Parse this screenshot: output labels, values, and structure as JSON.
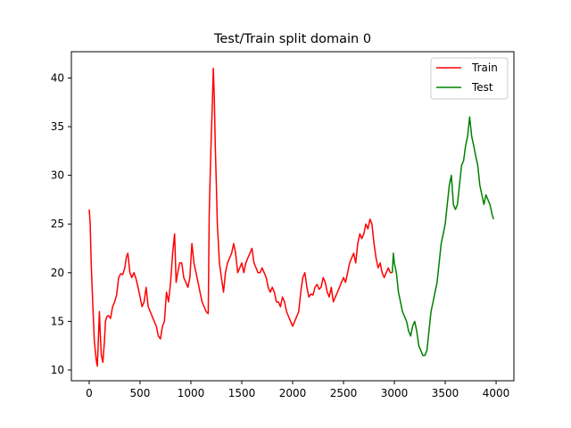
{
  "chart_data": {
    "type": "line",
    "title": "Test/Train split domain 0",
    "xlabel": "",
    "ylabel": "",
    "xlim": [
      -175,
      4175
    ],
    "ylim": [
      8.9,
      42.7
    ],
    "xticks": [
      0,
      500,
      1000,
      1500,
      2000,
      2500,
      3000,
      3500,
      4000
    ],
    "yticks": [
      10,
      15,
      20,
      25,
      30,
      35,
      40
    ],
    "grid": false,
    "legend": "top-right",
    "series": [
      {
        "name": "Train",
        "color": "#ff0000",
        "points": [
          [
            0,
            26.5
          ],
          [
            10,
            25
          ],
          [
            20,
            21
          ],
          [
            35,
            17
          ],
          [
            50,
            13
          ],
          [
            60,
            12
          ],
          [
            70,
            11
          ],
          [
            80,
            10.4
          ],
          [
            90,
            13
          ],
          [
            100,
            16
          ],
          [
            110,
            13.5
          ],
          [
            120,
            11.5
          ],
          [
            135,
            10.8
          ],
          [
            150,
            13
          ],
          [
            160,
            15
          ],
          [
            175,
            15.5
          ],
          [
            190,
            15.6
          ],
          [
            210,
            15.3
          ],
          [
            230,
            16.5
          ],
          [
            250,
            17
          ],
          [
            270,
            17.7
          ],
          [
            290,
            19.5
          ],
          [
            310,
            19.9
          ],
          [
            330,
            19.8
          ],
          [
            350,
            20.5
          ],
          [
            365,
            21.6
          ],
          [
            380,
            22
          ],
          [
            400,
            20
          ],
          [
            420,
            19.5
          ],
          [
            440,
            20
          ],
          [
            460,
            19.4
          ],
          [
            480,
            18.5
          ],
          [
            500,
            17.5
          ],
          [
            520,
            16.5
          ],
          [
            540,
            17
          ],
          [
            560,
            18.5
          ],
          [
            580,
            16.5
          ],
          [
            600,
            16
          ],
          [
            620,
            15.5
          ],
          [
            640,
            15
          ],
          [
            660,
            14.5
          ],
          [
            680,
            13.5
          ],
          [
            700,
            13.2
          ],
          [
            720,
            14.5
          ],
          [
            740,
            15
          ],
          [
            760,
            18
          ],
          [
            780,
            17
          ],
          [
            800,
            19
          ],
          [
            820,
            22
          ],
          [
            840,
            24
          ],
          [
            855,
            19
          ],
          [
            870,
            20
          ],
          [
            890,
            21
          ],
          [
            910,
            21
          ],
          [
            930,
            19.5
          ],
          [
            950,
            19
          ],
          [
            970,
            18.5
          ],
          [
            990,
            19.5
          ],
          [
            1010,
            23
          ],
          [
            1030,
            21
          ],
          [
            1050,
            20
          ],
          [
            1070,
            19
          ],
          [
            1090,
            18
          ],
          [
            1110,
            17
          ],
          [
            1130,
            16.5
          ],
          [
            1150,
            16
          ],
          [
            1170,
            15.8
          ],
          [
            1180,
            26
          ],
          [
            1190,
            30
          ],
          [
            1200,
            34
          ],
          [
            1210,
            37
          ],
          [
            1220,
            41
          ],
          [
            1230,
            38
          ],
          [
            1240,
            33
          ],
          [
            1250,
            29
          ],
          [
            1260,
            25
          ],
          [
            1270,
            23
          ],
          [
            1280,
            21
          ],
          [
            1300,
            19.5
          ],
          [
            1320,
            18
          ],
          [
            1340,
            20
          ],
          [
            1360,
            21
          ],
          [
            1380,
            21.5
          ],
          [
            1400,
            22
          ],
          [
            1420,
            23
          ],
          [
            1440,
            22
          ],
          [
            1460,
            20
          ],
          [
            1480,
            20.5
          ],
          [
            1500,
            21
          ],
          [
            1520,
            20
          ],
          [
            1540,
            21
          ],
          [
            1560,
            21.5
          ],
          [
            1580,
            22
          ],
          [
            1600,
            22.5
          ],
          [
            1620,
            21
          ],
          [
            1640,
            20.5
          ],
          [
            1660,
            20
          ],
          [
            1680,
            20
          ],
          [
            1700,
            20.5
          ],
          [
            1720,
            20
          ],
          [
            1740,
            19.5
          ],
          [
            1760,
            18.5
          ],
          [
            1780,
            18
          ],
          [
            1800,
            18.5
          ],
          [
            1820,
            18
          ],
          [
            1840,
            17
          ],
          [
            1860,
            17
          ],
          [
            1880,
            16.5
          ],
          [
            1900,
            17.5
          ],
          [
            1920,
            17
          ],
          [
            1940,
            16
          ],
          [
            1960,
            15.5
          ],
          [
            1980,
            15
          ],
          [
            2000,
            14.5
          ],
          [
            2020,
            15
          ],
          [
            2040,
            15.5
          ],
          [
            2060,
            16
          ],
          [
            2080,
            18
          ],
          [
            2100,
            19.5
          ],
          [
            2120,
            20
          ],
          [
            2140,
            18.5
          ],
          [
            2160,
            17.5
          ],
          [
            2180,
            17.8
          ],
          [
            2200,
            17.7
          ],
          [
            2220,
            18.5
          ],
          [
            2240,
            18.8
          ],
          [
            2260,
            18.3
          ],
          [
            2280,
            18.5
          ],
          [
            2300,
            19.5
          ],
          [
            2320,
            19
          ],
          [
            2340,
            18
          ],
          [
            2360,
            17.5
          ],
          [
            2380,
            18.5
          ],
          [
            2400,
            17
          ],
          [
            2420,
            17.5
          ],
          [
            2440,
            18
          ],
          [
            2460,
            18.5
          ],
          [
            2480,
            19
          ],
          [
            2500,
            19.5
          ],
          [
            2520,
            19
          ],
          [
            2540,
            20
          ],
          [
            2560,
            21
          ],
          [
            2580,
            21.5
          ],
          [
            2600,
            22
          ],
          [
            2620,
            21
          ],
          [
            2640,
            23
          ],
          [
            2660,
            24
          ],
          [
            2680,
            23.5
          ],
          [
            2700,
            24
          ],
          [
            2720,
            25
          ],
          [
            2740,
            24.5
          ],
          [
            2760,
            25.5
          ],
          [
            2780,
            25
          ],
          [
            2800,
            23
          ],
          [
            2820,
            21.5
          ],
          [
            2840,
            20.5
          ],
          [
            2860,
            21
          ],
          [
            2880,
            20
          ],
          [
            2900,
            19.5
          ],
          [
            2920,
            20
          ],
          [
            2940,
            20.5
          ],
          [
            2960,
            20
          ],
          [
            2980,
            20
          ]
        ]
      },
      {
        "name": "Test",
        "color": "#008000",
        "points": [
          [
            2980,
            20
          ],
          [
            2990,
            22
          ],
          [
            3000,
            21
          ],
          [
            3020,
            20
          ],
          [
            3040,
            18
          ],
          [
            3060,
            17
          ],
          [
            3080,
            16
          ],
          [
            3100,
            15.5
          ],
          [
            3120,
            15
          ],
          [
            3140,
            14
          ],
          [
            3160,
            13.5
          ],
          [
            3180,
            14.5
          ],
          [
            3200,
            15
          ],
          [
            3220,
            14
          ],
          [
            3240,
            12.5
          ],
          [
            3260,
            12
          ],
          [
            3280,
            11.5
          ],
          [
            3300,
            11.5
          ],
          [
            3320,
            12
          ],
          [
            3340,
            14
          ],
          [
            3360,
            16
          ],
          [
            3380,
            17
          ],
          [
            3400,
            18
          ],
          [
            3420,
            19
          ],
          [
            3440,
            21
          ],
          [
            3460,
            23
          ],
          [
            3480,
            24
          ],
          [
            3500,
            25
          ],
          [
            3520,
            27
          ],
          [
            3540,
            29
          ],
          [
            3560,
            30
          ],
          [
            3580,
            27
          ],
          [
            3600,
            26.5
          ],
          [
            3620,
            27
          ],
          [
            3640,
            29
          ],
          [
            3660,
            31
          ],
          [
            3680,
            31.5
          ],
          [
            3700,
            33
          ],
          [
            3720,
            34
          ],
          [
            3740,
            36
          ],
          [
            3760,
            34
          ],
          [
            3780,
            33
          ],
          [
            3800,
            32
          ],
          [
            3820,
            31
          ],
          [
            3840,
            29
          ],
          [
            3860,
            28
          ],
          [
            3880,
            27
          ],
          [
            3900,
            28
          ],
          [
            3920,
            27.5
          ],
          [
            3940,
            27
          ],
          [
            3960,
            26
          ],
          [
            3975,
            25.5
          ]
        ]
      }
    ]
  }
}
